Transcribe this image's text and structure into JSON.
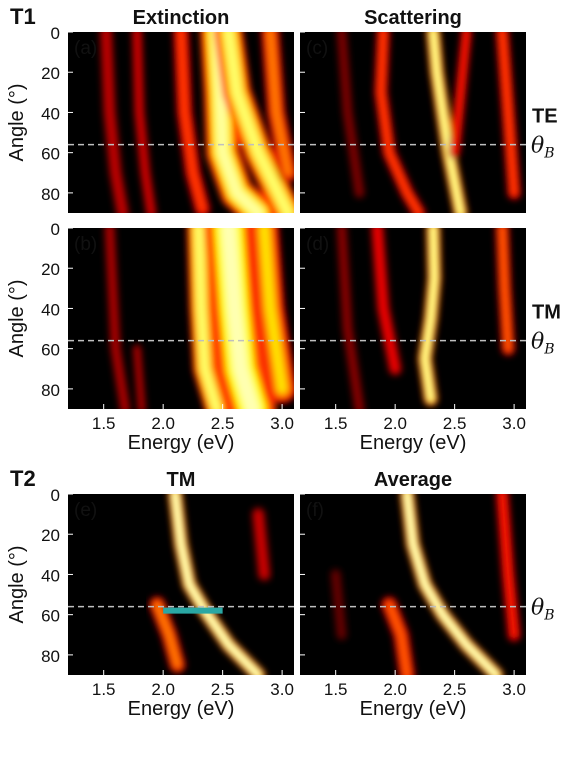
{
  "chart_data": [
    {
      "type": "heatmap",
      "panel": "(a)",
      "title": "Extinction",
      "row_label": "T1",
      "side_label": "",
      "xlim": [
        1.2,
        3.1
      ],
      "ylim": [
        0,
        90
      ],
      "ylabel": "Angle (°)",
      "xlabel": "",
      "yticks": [
        0,
        20,
        40,
        60,
        80
      ],
      "xticks": [],
      "brewster_deg": 56,
      "brewster_label": ""
    },
    {
      "type": "heatmap",
      "panel": "(c)",
      "title": "Scattering",
      "row_label": "",
      "side_label": "TE",
      "xlim": [
        1.2,
        3.1
      ],
      "ylim": [
        0,
        90
      ],
      "ylabel": "",
      "xlabel": "",
      "yticks": [
        0,
        20,
        40,
        60,
        80
      ],
      "xticks": [],
      "brewster_deg": 56,
      "brewster_label": "θB"
    },
    {
      "type": "heatmap",
      "panel": "(b)",
      "title": "",
      "row_label": "",
      "side_label": "",
      "xlim": [
        1.2,
        3.1
      ],
      "ylim": [
        0,
        90
      ],
      "ylabel": "Angle (°)",
      "xlabel": "Energy (eV)",
      "yticks": [
        0,
        20,
        40,
        60,
        80
      ],
      "xticks": [
        1.5,
        2.0,
        2.5,
        3.0
      ],
      "brewster_deg": 56,
      "brewster_label": ""
    },
    {
      "type": "heatmap",
      "panel": "(d)",
      "title": "",
      "row_label": "",
      "side_label": "TM",
      "xlim": [
        1.2,
        3.1
      ],
      "ylim": [
        0,
        90
      ],
      "ylabel": "",
      "xlabel": "Energy (eV)",
      "yticks": [
        0,
        20,
        40,
        60,
        80
      ],
      "xticks": [
        1.5,
        2.0,
        2.5,
        3.0
      ],
      "brewster_deg": 56,
      "brewster_label": "θB"
    },
    {
      "type": "heatmap",
      "panel": "(e)",
      "title": "TM",
      "row_label": "T2",
      "side_label": "",
      "xlim": [
        1.2,
        3.1
      ],
      "ylim": [
        0,
        90
      ],
      "ylabel": "Angle (°)",
      "xlabel": "Energy (eV)",
      "yticks": [
        0,
        20,
        40,
        60,
        80
      ],
      "xticks": [
        1.5,
        2.0,
        2.5,
        3.0
      ],
      "brewster_deg": 56,
      "brewster_label": "",
      "marker": {
        "color": "#2aa7a3",
        "x_range": [
          2.0,
          2.5
        ],
        "angle": 58
      }
    },
    {
      "type": "heatmap",
      "panel": "(f)",
      "title": "Average",
      "row_label": "",
      "side_label": "",
      "xlim": [
        1.2,
        3.1
      ],
      "ylim": [
        0,
        90
      ],
      "ylabel": "",
      "xlabel": "Energy (eV)",
      "yticks": [
        0,
        20,
        40,
        60,
        80
      ],
      "xticks": [
        1.5,
        2.0,
        2.5,
        3.0
      ],
      "brewster_deg": 56,
      "brewster_label": "θB"
    }
  ],
  "colormap": "hot",
  "brewster_line_color": "#bfbfbf"
}
